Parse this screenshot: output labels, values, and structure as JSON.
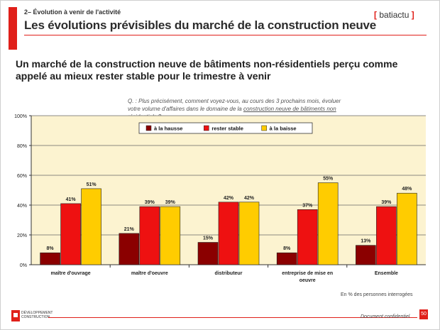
{
  "header": {
    "kicker": "2– Évolution à venir de l'activité",
    "title": "Les évolutions prévisibles du marché de la construction neuve",
    "brand": "batiactu",
    "brand_left": "[",
    "brand_right": "]"
  },
  "headline": "Un marché de la construction neuve de bâtiments non-résidentiels perçu comme appelé au mieux rester stable pour le trimestre à venir",
  "question": {
    "prefix": "Q. : Plus précisément, comment voyez-vous, au cours des 3 prochains mois, évoluer votre volume d'affaires dans le domaine de la ",
    "underlined": "construction neuve de bâtiments non résidentiels",
    "suffix": " ?"
  },
  "colors": {
    "hausse": "#8b0000",
    "stable": "#ee1111",
    "baisse": "#ffcc00",
    "plot_bg": "#fcf3d0",
    "accent": "#e0201a"
  },
  "chart_data": {
    "type": "bar",
    "title": "",
    "xlabel": "",
    "ylabel": "",
    "ylim": [
      0,
      100
    ],
    "yticks": [
      0,
      20,
      40,
      60,
      80,
      100
    ],
    "ytick_labels": [
      "0%",
      "20%",
      "40%",
      "60%",
      "80%",
      "100%"
    ],
    "grid": true,
    "legend_position": "top-center",
    "categories": [
      "maître d'ouvrage",
      "maître d'oeuvre",
      "distributeur",
      "entreprise de mise en oeuvre",
      "Ensemble"
    ],
    "series": [
      {
        "name": "à la hausse",
        "color": "#8b0000",
        "values": [
          8,
          21,
          15,
          8,
          13
        ],
        "labels": [
          "8%",
          "21%",
          "15%",
          "8%",
          "13%"
        ]
      },
      {
        "name": "rester stable",
        "color": "#ee1111",
        "values": [
          41,
          39,
          42,
          37,
          39
        ],
        "labels": [
          "41%",
          "39%",
          "42%",
          "37%",
          "39%"
        ]
      },
      {
        "name": "à la baisse",
        "color": "#ffcc00",
        "values": [
          51,
          39,
          42,
          55,
          48
        ],
        "labels": [
          "51%",
          "39%",
          "42%",
          "55%",
          "48%"
        ]
      }
    ]
  },
  "footnote": "En % des personnes interrogées",
  "footer": {
    "logo_line1": "DÉVELOPPEMENT",
    "logo_line2": "CONSTRUCTION",
    "confidential": "Document confidentiel",
    "page_number": "50"
  }
}
